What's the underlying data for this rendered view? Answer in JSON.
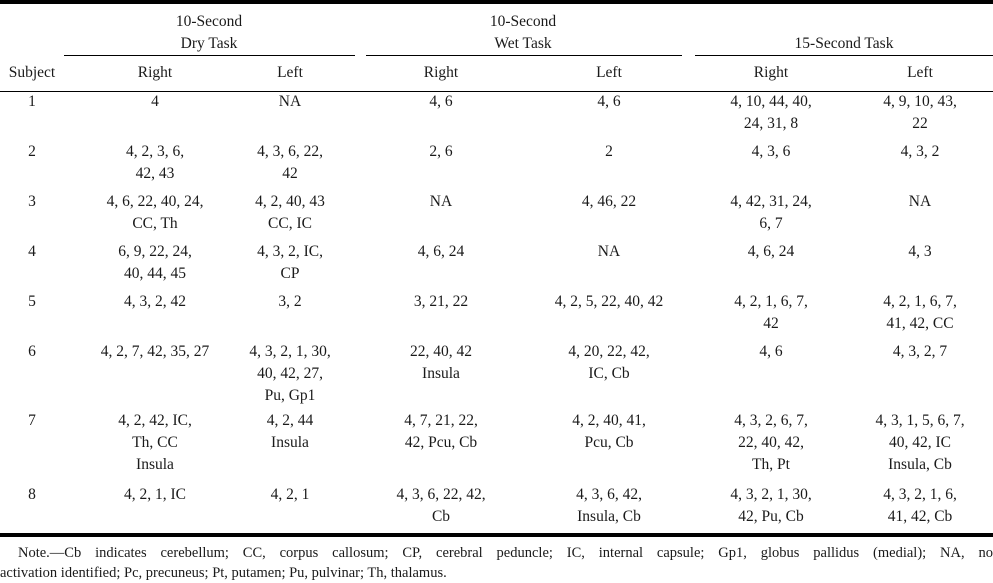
{
  "header": {
    "groups": [
      {
        "label": "10-Second\nDry Task"
      },
      {
        "label": "10-Second\nWet Task"
      },
      {
        "label": "15-Second Task"
      }
    ],
    "subject_label": "Subject",
    "subheaders": [
      "Right",
      "Left",
      "Right",
      "Left",
      "Right",
      "Left"
    ]
  },
  "rows": [
    {
      "subject": "1",
      "cells": [
        "4",
        "NA",
        "4, 6",
        "4, 6",
        "4, 10, 44, 40,\n24, 31, 8",
        "4, 9, 10, 43,\n22"
      ]
    },
    {
      "subject": "2",
      "cells": [
        "4, 2, 3, 6,\n42, 43",
        "4, 3, 6, 22,\n42",
        "2, 6",
        "2",
        "4, 3, 6",
        "4, 3, 2"
      ]
    },
    {
      "subject": "3",
      "cells": [
        "4, 6, 22, 40, 24,\nCC, Th",
        "4, 2, 40, 43\nCC, IC",
        "NA",
        "4, 46, 22",
        "4, 42, 31, 24,\n6, 7",
        "NA"
      ]
    },
    {
      "subject": "4",
      "cells": [
        "6, 9, 22, 24,\n40, 44, 45",
        "4, 3, 2, IC,\nCP",
        "4, 6, 24",
        "NA",
        "4, 6, 24",
        "4, 3"
      ]
    },
    {
      "subject": "5",
      "cells": [
        "4, 3, 2, 42",
        "3, 2",
        "3, 21, 22",
        "4, 2, 5, 22, 40, 42",
        "4, 2, 1, 6, 7,\n42",
        "4, 2, 1, 6, 7,\n41, 42, CC"
      ]
    },
    {
      "subject": "6",
      "cells": [
        "4, 2, 7, 42, 35, 27",
        "4, 3, 2, 1, 30,\n40, 42, 27,\nPu, Gp1",
        "22, 40, 42\nInsula",
        "4, 20, 22, 42,\nIC, Cb",
        "4, 6",
        "4, 3, 2, 7"
      ]
    },
    {
      "subject": "7",
      "cells": [
        "4, 2, 42, IC,\nTh, CC\nInsula",
        "4, 2, 44\nInsula",
        "4, 7, 21, 22,\n42, Pcu, Cb",
        "4, 2, 40, 41,\nPcu, Cb",
        "4, 3, 2, 6, 7,\n22, 40, 42,\nTh, Pt",
        "4, 3, 1, 5, 6, 7,\n40, 42, IC\nInsula, Cb"
      ]
    },
    {
      "subject": "8",
      "cells": [
        "4, 2, 1, IC",
        "4, 2, 1",
        "4, 3, 6, 22, 42,\nCb",
        "4, 3, 6, 42,\nInsula, Cb",
        "4, 3, 2, 1, 30,\n42, Pu, Cb",
        "4, 3, 2, 1, 6,\n41, 42, Cb"
      ]
    }
  ],
  "note": {
    "line1": "Note.—Cb indicates cerebellum; CC, corpus callosum; CP, cerebral peduncle; IC, internal capsule; Gp1, globus pallidus (medial); NA, no",
    "line2": "activation identified; Pc, precuneus; Pt, putamen; Pu, pulvinar; Th, thalamus."
  }
}
